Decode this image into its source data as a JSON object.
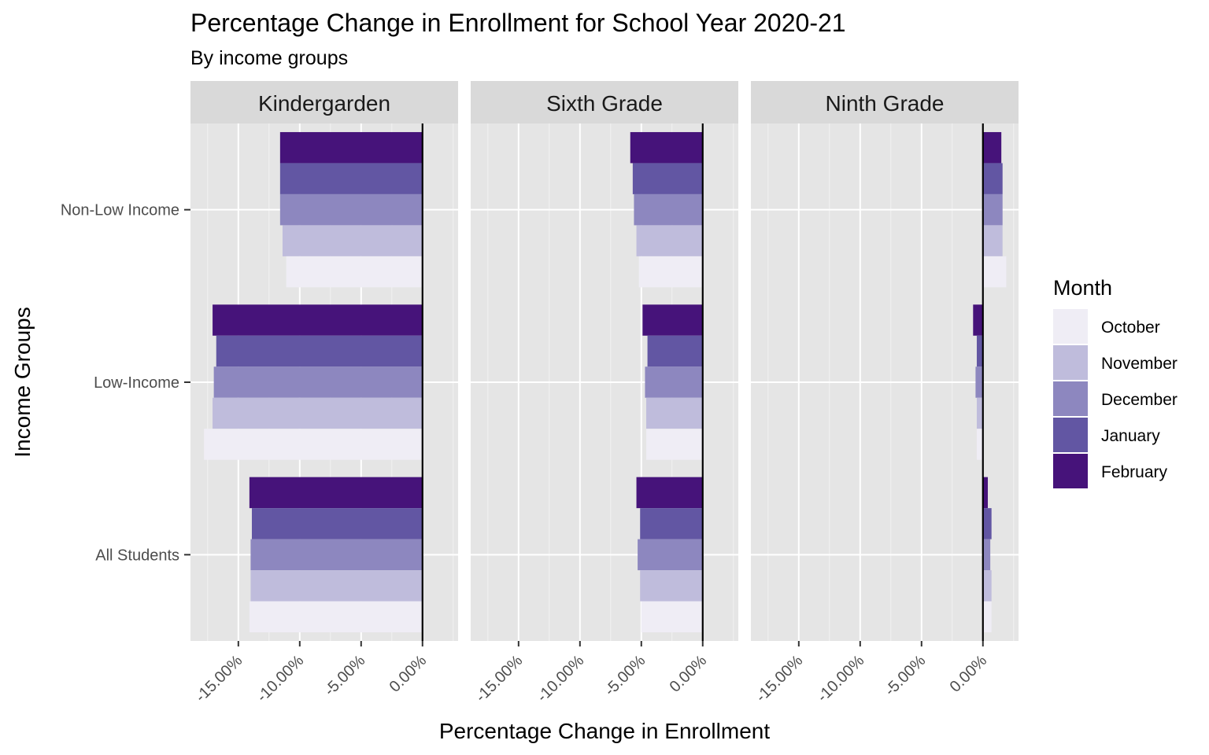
{
  "chart_data": {
    "type": "bar",
    "orientation": "horizontal",
    "title": "Percentage Change in Enrollment for School Year 2020-21",
    "subtitle": "By income groups",
    "xlabel": "Percentage Change in Enrollment",
    "ylabel": "Income Groups",
    "xlim": [
      -18.9,
      2.9
    ],
    "x_ticks": [
      -15,
      -10,
      -5,
      0
    ],
    "x_tick_labels": [
      "-15.00%",
      "-10.00%",
      "-5.00%",
      "0.00%"
    ],
    "categories": [
      "Non-Low Income",
      "Low-Income",
      "All Students"
    ],
    "grid": true,
    "reference_line": 0,
    "legend": {
      "title": "Month",
      "position": "right",
      "entries": [
        "October",
        "November",
        "December",
        "January",
        "February"
      ]
    },
    "colors": {
      "October": "#efedf5",
      "November": "#bfbcdc",
      "December": "#8d87bf",
      "January": "#6256a3",
      "February": "#46137a"
    },
    "facets": [
      {
        "name": "Kindergarden",
        "series": [
          {
            "name": "October",
            "values": [
              -11.1,
              -17.8,
              -14.1
            ]
          },
          {
            "name": "November",
            "values": [
              -11.4,
              -17.1,
              -14.0
            ]
          },
          {
            "name": "December",
            "values": [
              -11.6,
              -17.0,
              -14.0
            ]
          },
          {
            "name": "January",
            "values": [
              -11.6,
              -16.8,
              -13.9
            ]
          },
          {
            "name": "February",
            "values": [
              -11.6,
              -17.1,
              -14.1
            ]
          }
        ]
      },
      {
        "name": "Sixth Grade",
        "series": [
          {
            "name": "October",
            "values": [
              -5.2,
              -4.6,
              -5.0
            ]
          },
          {
            "name": "November",
            "values": [
              -5.4,
              -4.6,
              -5.1
            ]
          },
          {
            "name": "December",
            "values": [
              -5.6,
              -4.7,
              -5.3
            ]
          },
          {
            "name": "January",
            "values": [
              -5.7,
              -4.5,
              -5.1
            ]
          },
          {
            "name": "February",
            "values": [
              -5.9,
              -4.9,
              -5.4
            ]
          }
        ]
      },
      {
        "name": "Ninth Grade",
        "series": [
          {
            "name": "October",
            "values": [
              1.9,
              -0.5,
              0.7
            ]
          },
          {
            "name": "November",
            "values": [
              1.6,
              -0.5,
              0.7
            ]
          },
          {
            "name": "December",
            "values": [
              1.6,
              -0.6,
              0.6
            ]
          },
          {
            "name": "January",
            "values": [
              1.6,
              -0.5,
              0.7
            ]
          },
          {
            "name": "February",
            "values": [
              1.5,
              -0.8,
              0.4
            ]
          }
        ]
      }
    ]
  }
}
